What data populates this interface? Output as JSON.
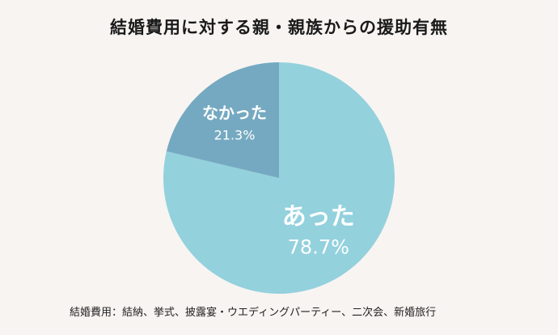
{
  "chart_data": {
    "type": "pie",
    "title": "結婚費用に対する親・親族からの援助有無",
    "slices": [
      {
        "label": "あった",
        "value": 78.7,
        "value_label": "78.7%",
        "color": "#93d1dd"
      },
      {
        "label": "なかった",
        "value": 21.3,
        "value_label": "21.3%",
        "color": "#75a9c1"
      }
    ],
    "start": "12 o'clock",
    "direction": "clockwise",
    "legend": "none",
    "footnote": "結婚費用：結納、挙式、披露宴・ウエディングパーティー、二次会、新婚旅行"
  }
}
